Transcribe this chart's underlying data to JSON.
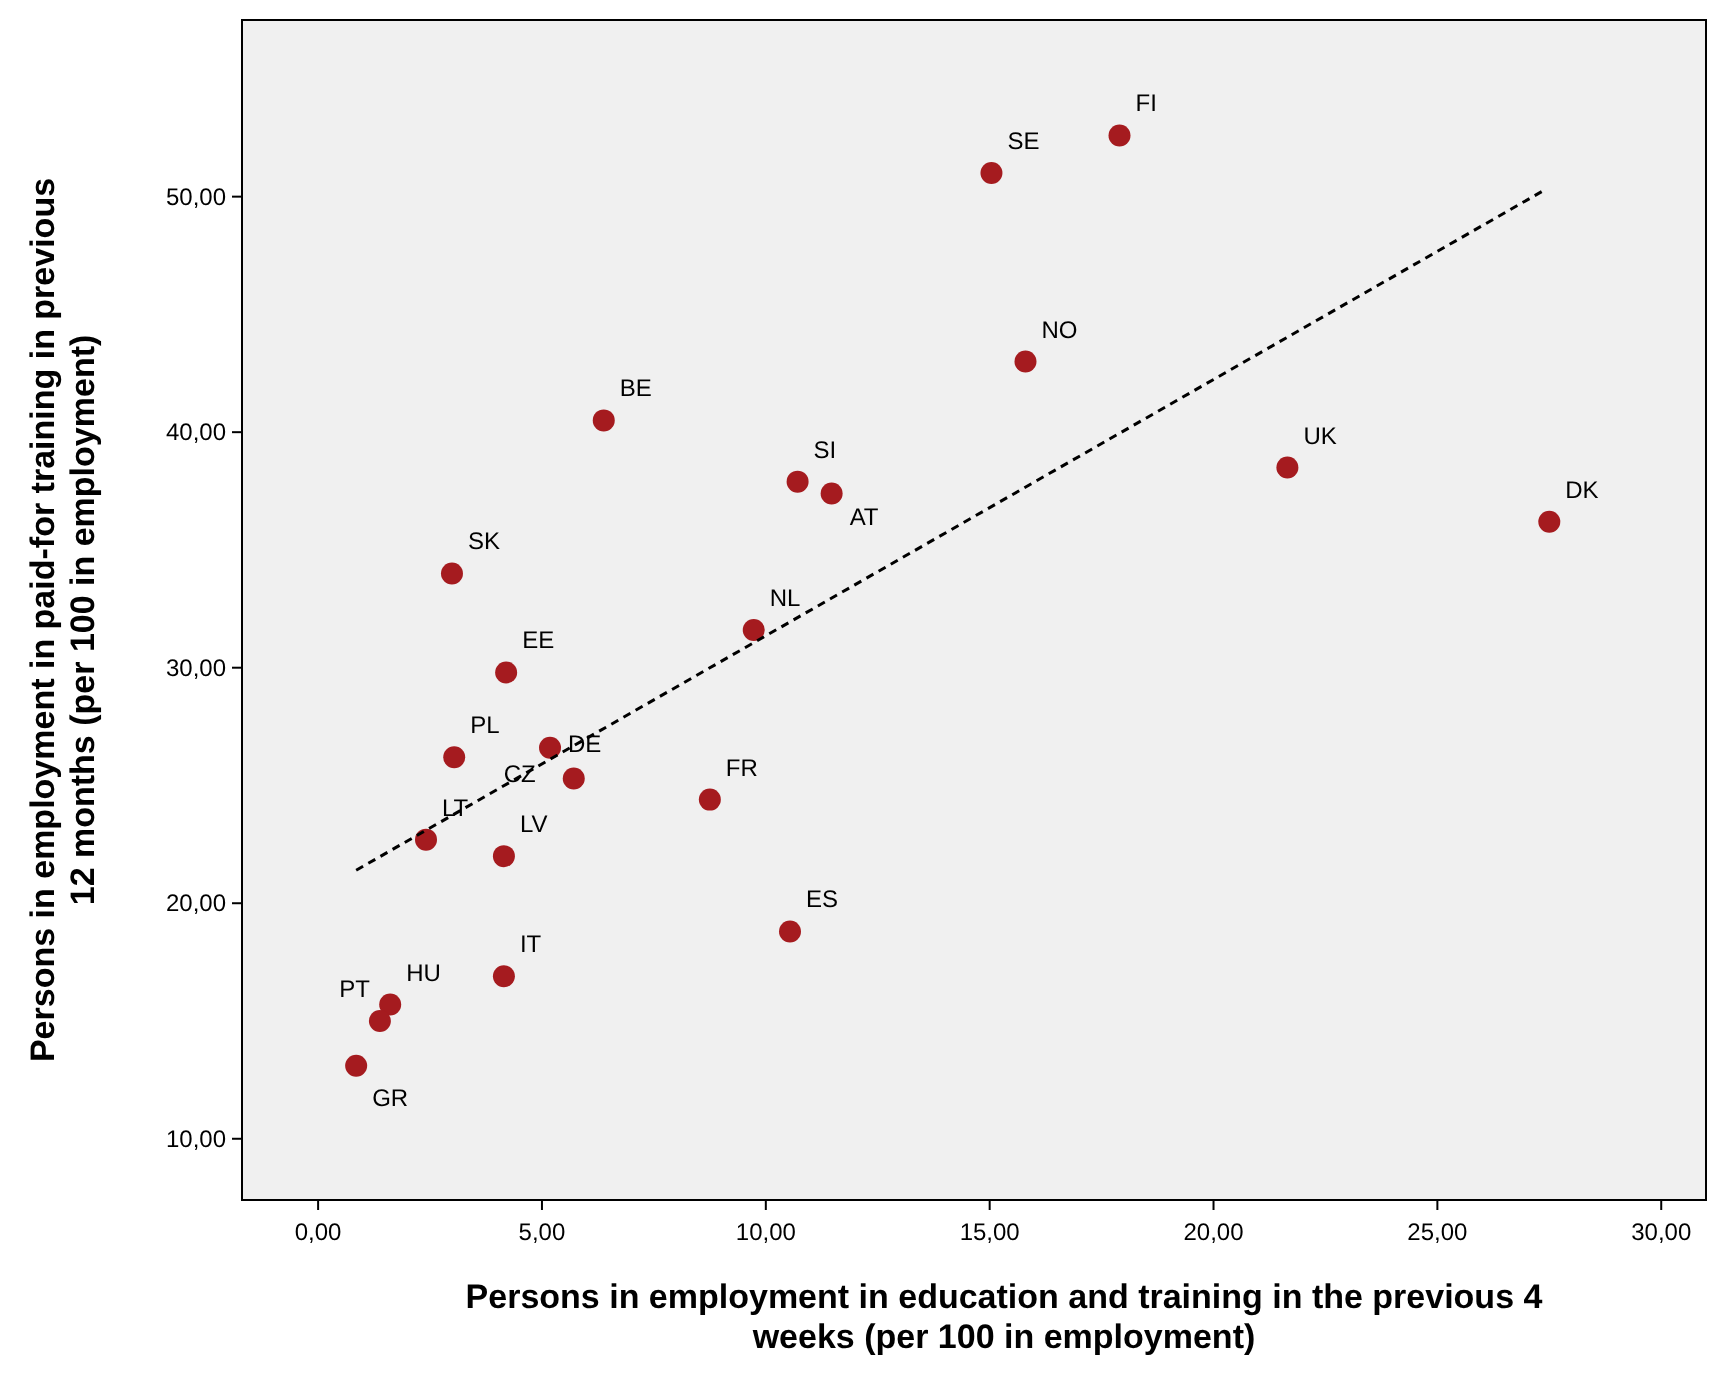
{
  "chart_data": {
    "type": "scatter",
    "xlabel": "Persons in employment in education and training in the previous 4\nweeks  (per 100  in employment)",
    "ylabel": "Persons in employment in paid-for training in previous\n12 months (per 100 in employment)",
    "xlim": [
      -1.7,
      31
    ],
    "ylim": [
      7.4,
      57.5
    ],
    "xticks": [
      {
        "value": 0,
        "label": "0,00"
      },
      {
        "value": 5,
        "label": "5,00"
      },
      {
        "value": 10,
        "label": "10,00"
      },
      {
        "value": 15,
        "label": "15,00"
      },
      {
        "value": 20,
        "label": "20,00"
      },
      {
        "value": 25,
        "label": "25,00"
      },
      {
        "value": 30,
        "label": "30,00"
      }
    ],
    "yticks": [
      {
        "value": 10,
        "label": "10,00"
      },
      {
        "value": 20,
        "label": "20,00"
      },
      {
        "value": 30,
        "label": "30,00"
      },
      {
        "value": 40,
        "label": "40,00"
      },
      {
        "value": 50,
        "label": "50,00"
      }
    ],
    "grid": false,
    "series": [
      {
        "marker": "circle",
        "color": "#a51b1f",
        "x": [
          17.9,
          15.04,
          15.8,
          6.38,
          10.71,
          11.47,
          21.65,
          27.5,
          2.99,
          9.73,
          4.2,
          3.04,
          5.18,
          5.71,
          8.75,
          2.41,
          4.15,
          10.54,
          4.15,
          1.61,
          1.38,
          0.85
        ],
        "values": [
          52.6,
          51.0,
          43.0,
          40.5,
          37.9,
          37.4,
          38.5,
          36.2,
          34.0,
          31.6,
          29.8,
          26.2,
          26.6,
          25.3,
          24.4,
          22.7,
          22.0,
          18.8,
          16.9,
          15.7,
          15.0,
          13.1
        ]
      },
      {
        "type": "line",
        "color": "#000000",
        "line_style": "dashed",
        "x": [
          0.85,
          27.41
        ],
        "values": [
          21.4,
          50.3
        ]
      }
    ],
    "annotations": [
      {
        "text": "FI",
        "x": 17.9,
        "y": 52.6
      },
      {
        "text": "SE",
        "x": 15.04,
        "y": 51.0
      },
      {
        "text": "NO",
        "x": 15.8,
        "y": 43.0
      },
      {
        "text": "BE",
        "x": 6.38,
        "y": 40.5
      },
      {
        "text": "SI",
        "x": 10.71,
        "y": 37.9
      },
      {
        "text": "AT",
        "x": 11.47,
        "y": 37.4
      },
      {
        "text": "UK",
        "x": 21.65,
        "y": 38.5
      },
      {
        "text": "DK",
        "x": 27.5,
        "y": 36.2
      },
      {
        "text": "SK",
        "x": 2.99,
        "y": 34.0
      },
      {
        "text": "NL",
        "x": 9.73,
        "y": 31.6
      },
      {
        "text": "EE",
        "x": 4.2,
        "y": 29.8
      },
      {
        "text": "PL",
        "x": 3.04,
        "y": 26.2
      },
      {
        "text": "DE",
        "x": 5.18,
        "y": 26.6
      },
      {
        "text": "CZ",
        "x": 5.71,
        "y": 25.3
      },
      {
        "text": "FR",
        "x": 8.75,
        "y": 24.4
      },
      {
        "text": "LT",
        "x": 2.41,
        "y": 22.7
      },
      {
        "text": "LV",
        "x": 4.15,
        "y": 22.0
      },
      {
        "text": "ES",
        "x": 10.54,
        "y": 18.8
      },
      {
        "text": "IT",
        "x": 4.15,
        "y": 16.9
      },
      {
        "text": "HU",
        "x": 1.61,
        "y": 15.7
      },
      {
        "text": "PT",
        "x": 1.38,
        "y": 15.0
      },
      {
        "text": "GR",
        "x": 0.85,
        "y": 13.1
      }
    ]
  }
}
